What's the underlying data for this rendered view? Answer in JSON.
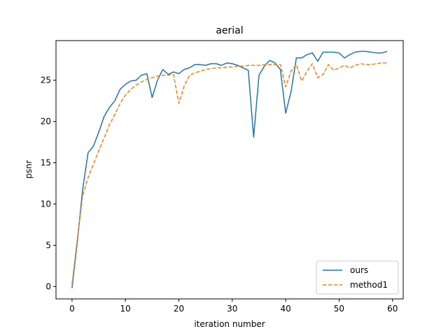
{
  "chart_data": {
    "type": "line",
    "title": "aerial",
    "xlabel": "iteration number",
    "ylabel": "psnr",
    "xlim": [
      -3,
      62
    ],
    "ylim": [
      -1.5,
      29.8
    ],
    "xticks": [
      0,
      10,
      20,
      30,
      40,
      50,
      60
    ],
    "yticks": [
      0,
      5,
      10,
      15,
      20,
      25
    ],
    "legend_position": "lower-right",
    "grid": false,
    "series": [
      {
        "name": "ours",
        "color": "#1f77b4",
        "style": "solid",
        "values": [
          -0.2,
          5.5,
          11.8,
          16.2,
          17.0,
          18.7,
          20.6,
          21.7,
          22.5,
          23.9,
          24.5,
          24.9,
          25.0,
          25.6,
          25.8,
          22.9,
          25.0,
          26.3,
          25.7,
          26.0,
          25.8,
          26.3,
          26.5,
          26.9,
          26.9,
          26.8,
          27.0,
          27.0,
          26.8,
          27.1,
          27.0,
          26.8,
          26.5,
          26.2,
          18.1,
          25.6,
          26.7,
          27.4,
          27.1,
          26.3,
          21.0,
          23.6,
          27.7,
          27.7,
          28.1,
          28.3,
          27.3,
          28.4,
          28.4,
          28.4,
          28.3,
          27.7,
          28.1,
          28.4,
          28.5,
          28.5,
          28.4,
          28.3,
          28.3,
          28.5
        ]
      },
      {
        "name": "method1",
        "color": "#ff7f0e",
        "style": "dashed",
        "values": [
          0.3,
          5.8,
          11.0,
          13.2,
          14.8,
          16.5,
          18.0,
          19.6,
          20.8,
          22.2,
          23.2,
          23.9,
          24.4,
          24.8,
          25.1,
          25.3,
          25.5,
          25.6,
          25.6,
          25.7,
          22.2,
          24.3,
          25.6,
          25.9,
          26.1,
          26.3,
          26.4,
          26.5,
          26.5,
          26.6,
          26.6,
          26.7,
          26.7,
          26.8,
          26.8,
          26.8,
          26.9,
          26.9,
          26.9,
          26.9,
          24.2,
          26.1,
          26.9,
          24.9,
          26.1,
          27.0,
          25.3,
          25.7,
          26.9,
          26.2,
          26.5,
          26.8,
          26.5,
          26.8,
          27.0,
          26.9,
          26.9,
          27.0,
          27.1,
          27.1
        ]
      }
    ]
  }
}
